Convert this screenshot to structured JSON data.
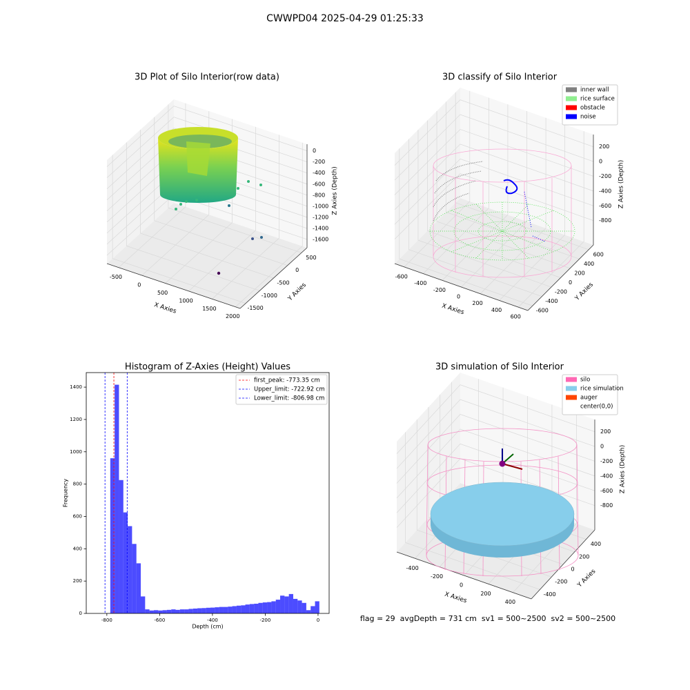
{
  "header": {
    "title": "CWWPD04 2025-04-29 01:25:33"
  },
  "chart_data": [
    {
      "type": "scatter3d",
      "title": "3D Plot of Silo Interior(row data)",
      "xlabel": "X Axies",
      "ylabel": "Y Axies",
      "zlabel": "Z Axies (Depth)",
      "xlim": [
        -750,
        2100
      ],
      "ylim": [
        -1700,
        700
      ],
      "zlim": [
        -1750,
        120
      ],
      "xticks": [
        -500,
        0,
        500,
        1000,
        1500,
        2000
      ],
      "yticks": [
        -1500,
        -1000,
        -500,
        0,
        500
      ],
      "zticks": [
        0,
        -200,
        -400,
        -600,
        -800,
        -1000,
        -1200,
        -1400,
        -1600
      ]
    },
    {
      "type": "scatter3d",
      "title": "3D classify of Silo Interior",
      "xlabel": "X Axies",
      "ylabel": "Y Axies",
      "zlabel": "Z Axies (Depth)",
      "xlim": [
        -700,
        700
      ],
      "ylim": [
        -700,
        700
      ],
      "zlim": [
        -1130,
        365
      ],
      "xticks": [
        -600,
        -400,
        -200,
        0,
        200,
        400,
        600
      ],
      "yticks": [
        -600,
        -400,
        -200,
        0,
        200,
        400,
        600
      ],
      "zticks": [
        200,
        0,
        -200,
        -400,
        -600,
        -800
      ],
      "legend": [
        {
          "name": "inner wall",
          "color": "#808080"
        },
        {
          "name": "rice surface",
          "color": "#90ee90"
        },
        {
          "name": "obstacle",
          "color": "#ff0000"
        },
        {
          "name": "noise",
          "color": "#0000ff"
        }
      ]
    },
    {
      "type": "histogram",
      "title": "Histogram of Z-Axies (Height) Values",
      "xlabel": "Depth (cm)",
      "ylabel": "Frequency",
      "color": "#0000ff",
      "bins": [
        -787,
        -770.5,
        -754,
        -737.5,
        -721,
        -704.5,
        -688,
        -671.5,
        -655,
        -638.5,
        -622,
        -605.5,
        -589,
        -572.5,
        -556,
        -539.5,
        -523,
        -506.5,
        -490,
        -473.5,
        -457,
        -440.5,
        -424,
        -407.5,
        -391,
        -374.5,
        -358,
        -341.5,
        -325,
        -308.5,
        -292,
        -275.5,
        -259,
        -242.5,
        -226,
        -209.5,
        -193,
        -176.5,
        -160,
        -143.5,
        -127,
        -110.5,
        -94,
        -77.5,
        -61,
        -44.5,
        -28,
        -11.5,
        5
      ],
      "counts": [
        960,
        1415,
        825,
        625,
        540,
        430,
        310,
        105,
        25,
        18,
        20,
        18,
        20,
        22,
        25,
        22,
        25,
        25,
        28,
        30,
        32,
        33,
        35,
        36,
        38,
        40,
        40,
        42,
        45,
        48,
        50,
        55,
        58,
        60,
        65,
        68,
        70,
        75,
        85,
        110,
        105,
        120,
        90,
        80,
        65,
        20,
        45,
        75
      ],
      "vlines": [
        {
          "name": "first_peak: -773.35 cm",
          "value": -773.35,
          "color": "#ff0000"
        },
        {
          "name": "Upper_limit: -722.92 cm",
          "value": -722.92,
          "color": "#0000ff"
        },
        {
          "name": "Lower_limit: -806.98 cm",
          "value": -806.98,
          "color": "#0000ff"
        }
      ],
      "xlim": [
        -878,
        42
      ],
      "ylim": [
        0,
        1490
      ],
      "xticks": [
        -800,
        -600,
        -400,
        -200,
        0
      ],
      "yticks": [
        0,
        200,
        400,
        600,
        800,
        1000,
        1200,
        1400
      ]
    },
    {
      "type": "surface3d",
      "title": "3D simulation of Silo Interior",
      "xlabel": "X Axies",
      "ylabel": "Y Axies",
      "zlabel": "Z Axies (Depth)",
      "xlim": [
        -550,
        550
      ],
      "ylim": [
        -550,
        550
      ],
      "zlim": [
        -1130,
        365
      ],
      "xticks": [
        -400,
        -200,
        0,
        200,
        400
      ],
      "yticks": [
        -400,
        -200,
        0,
        200,
        400
      ],
      "zticks": [
        200,
        0,
        -200,
        -400,
        -600,
        -800
      ],
      "legend": [
        {
          "name": "silo",
          "color": "#ff69b4"
        },
        {
          "name": "rice simulation",
          "color": "#87ceeb"
        },
        {
          "name": "auger",
          "color": "#ff4500"
        },
        {
          "name": "center(0,0)",
          "color": "#ffffff"
        }
      ]
    }
  ],
  "footer": {
    "text": "flag = 29  avgDepth = 731 cm  sv1 = 500~2500  sv2 = 500~2500"
  }
}
